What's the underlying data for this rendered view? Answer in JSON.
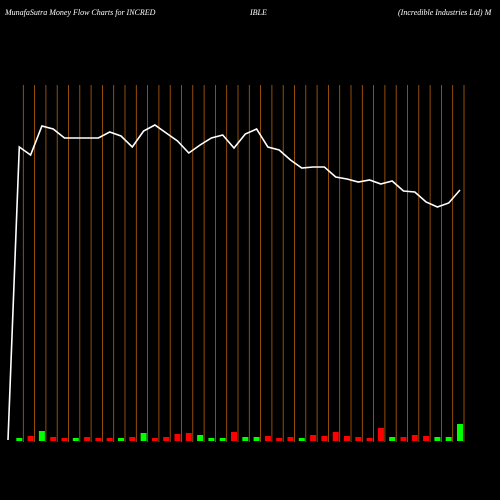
{
  "chart_data": {
    "type": "line",
    "title_parts": [
      "MunafaSutra  Money Flow  Charts for INCRED",
      "IBLE",
      "(Incredible   Industries Ltd) M"
    ],
    "categories": [
      null,
      null,
      null,
      null,
      null,
      null,
      null,
      null,
      null,
      null,
      null,
      null,
      null,
      null,
      null,
      null,
      null,
      null,
      null,
      null,
      null,
      null,
      null,
      null,
      null,
      null,
      null,
      null,
      null,
      null,
      null,
      null,
      null,
      null,
      null,
      null,
      null,
      null,
      null,
      null,
      null
    ],
    "series": [
      {
        "color": "#ffffff",
        "values": [
          60,
          353,
          345,
          374,
          371,
          362,
          362,
          362,
          362,
          368,
          364,
          353,
          369,
          375,
          367,
          359,
          347,
          355,
          362,
          365,
          352,
          366,
          371,
          353,
          350,
          340,
          332,
          333,
          333,
          323,
          321,
          318,
          320,
          316,
          319,
          309,
          308,
          298,
          293,
          297,
          310
        ]
      },
      {
        "type": "bar",
        "axis": "y2",
        "colors": [
          null,
          "#00ff00",
          "#ff0000",
          "#00ff00",
          "#ff0000",
          "#ff0000",
          "#00ff00",
          "#ff0000",
          "#ff0000",
          "#ff0000",
          "#00ff00",
          "#ff0000",
          "#00ff00",
          "#ff0000",
          "#ff0000",
          "#ff0000",
          "#ff0000",
          "#00ff00",
          "#00ff00",
          "#00ff00",
          "#ff0000",
          "#00ff00",
          "#00ff00",
          "#ff0000",
          "#ff0000",
          "#ff0000",
          "#00ff00",
          "#ff0000",
          "#ff0000",
          "#ff0000",
          "#ff0000",
          "#ff0000",
          "#ff0000",
          "#ff0000",
          "#00ff00",
          "#ff0000",
          "#ff0000",
          "#ff0000",
          "#00ff00",
          "#00ff00",
          "#00ff00"
        ],
        "values": [
          null,
          3,
          5,
          10,
          4,
          3,
          3,
          4,
          3,
          3,
          3,
          4,
          8,
          3,
          4,
          7,
          8,
          6,
          3,
          3,
          9,
          4,
          4,
          5,
          3,
          4,
          3,
          6,
          5,
          9,
          5,
          4,
          3,
          13,
          4,
          4,
          6,
          5,
          4,
          4,
          17
        ]
      }
    ],
    "ylim": [
      0,
      500
    ],
    "y2lim": [
      0,
      100
    ],
    "grid": true,
    "grid_color": "#b8600b",
    "background": "#000000"
  }
}
